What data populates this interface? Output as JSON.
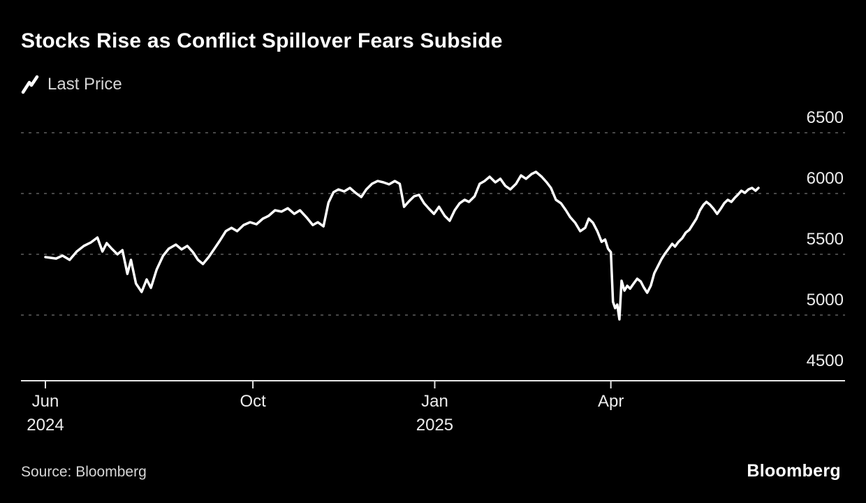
{
  "title": "Stocks Rise as Conflict Spillover Fears Subside",
  "legend": {
    "label": "Last Price"
  },
  "source": "Source: Bloomberg",
  "brand": "Bloomberg",
  "colors": {
    "background": "#000000",
    "line": "#ffffff",
    "grid": "#5f5f5f",
    "axis": "#e8e8e8",
    "text_primary": "#ffffff",
    "text_secondary": "#d6d6d6"
  },
  "chart_data": {
    "type": "line",
    "title": "Stocks Rise as Conflict Spillover Fears Subside",
    "legend_position": "top-left",
    "grid": "dashed-horizontal",
    "y_axis": {
      "ticks": [
        6500,
        6000,
        5500,
        5000,
        4500
      ],
      "gridline_values": [
        6500,
        6000,
        5500,
        5000
      ],
      "range": [
        4450,
        6550
      ],
      "side": "right"
    },
    "x_axis": {
      "ticks": [
        {
          "label": "Jun",
          "sub": "2024",
          "pos": 0.0
        },
        {
          "label": "Oct",
          "sub": "",
          "pos": 0.291
        },
        {
          "label": "Jan",
          "sub": "2025",
          "pos": 0.546
        },
        {
          "label": "Apr",
          "sub": "",
          "pos": 0.793
        }
      ],
      "range_note": "Jun 2024 through mid-2025"
    },
    "series": [
      {
        "name": "Last Price",
        "color": "#ffffff",
        "points": [
          [
            0.0,
            5477
          ],
          [
            0.015,
            5465
          ],
          [
            0.024,
            5489
          ],
          [
            0.034,
            5454
          ],
          [
            0.044,
            5523
          ],
          [
            0.054,
            5569
          ],
          [
            0.064,
            5598
          ],
          [
            0.073,
            5638
          ],
          [
            0.08,
            5523
          ],
          [
            0.086,
            5592
          ],
          [
            0.093,
            5546
          ],
          [
            0.101,
            5500
          ],
          [
            0.108,
            5534
          ],
          [
            0.115,
            5339
          ],
          [
            0.12,
            5454
          ],
          [
            0.127,
            5259
          ],
          [
            0.135,
            5190
          ],
          [
            0.142,
            5293
          ],
          [
            0.148,
            5224
          ],
          [
            0.156,
            5374
          ],
          [
            0.165,
            5488
          ],
          [
            0.173,
            5546
          ],
          [
            0.183,
            5580
          ],
          [
            0.191,
            5540
          ],
          [
            0.199,
            5569
          ],
          [
            0.207,
            5517
          ],
          [
            0.214,
            5454
          ],
          [
            0.221,
            5420
          ],
          [
            0.229,
            5477
          ],
          [
            0.237,
            5546
          ],
          [
            0.245,
            5615
          ],
          [
            0.253,
            5690
          ],
          [
            0.261,
            5718
          ],
          [
            0.269,
            5690
          ],
          [
            0.278,
            5741
          ],
          [
            0.287,
            5764
          ],
          [
            0.296,
            5747
          ],
          [
            0.305,
            5793
          ],
          [
            0.313,
            5816
          ],
          [
            0.322,
            5862
          ],
          [
            0.331,
            5851
          ],
          [
            0.34,
            5879
          ],
          [
            0.349,
            5833
          ],
          [
            0.357,
            5862
          ],
          [
            0.366,
            5805
          ],
          [
            0.375,
            5741
          ],
          [
            0.382,
            5764
          ],
          [
            0.39,
            5730
          ],
          [
            0.397,
            5925
          ],
          [
            0.404,
            6011
          ],
          [
            0.411,
            6034
          ],
          [
            0.419,
            6017
          ],
          [
            0.427,
            6046
          ],
          [
            0.435,
            6006
          ],
          [
            0.443,
            5971
          ],
          [
            0.45,
            6034
          ],
          [
            0.458,
            6080
          ],
          [
            0.466,
            6103
          ],
          [
            0.474,
            6092
          ],
          [
            0.482,
            6075
          ],
          [
            0.49,
            6103
          ],
          [
            0.497,
            6080
          ],
          [
            0.503,
            5891
          ],
          [
            0.51,
            5937
          ],
          [
            0.517,
            5977
          ],
          [
            0.524,
            5989
          ],
          [
            0.531,
            5920
          ],
          [
            0.538,
            5874
          ],
          [
            0.545,
            5833
          ],
          [
            0.552,
            5891
          ],
          [
            0.56,
            5816
          ],
          [
            0.567,
            5776
          ],
          [
            0.574,
            5862
          ],
          [
            0.581,
            5920
          ],
          [
            0.588,
            5948
          ],
          [
            0.594,
            5931
          ],
          [
            0.602,
            5977
          ],
          [
            0.609,
            6080
          ],
          [
            0.616,
            6103
          ],
          [
            0.623,
            6138
          ],
          [
            0.631,
            6092
          ],
          [
            0.638,
            6121
          ],
          [
            0.645,
            6063
          ],
          [
            0.652,
            6034
          ],
          [
            0.66,
            6080
          ],
          [
            0.667,
            6149
          ],
          [
            0.674,
            6121
          ],
          [
            0.682,
            6161
          ],
          [
            0.688,
            6178
          ],
          [
            0.696,
            6138
          ],
          [
            0.703,
            6092
          ],
          [
            0.709,
            6046
          ],
          [
            0.716,
            5948
          ],
          [
            0.723,
            5920
          ],
          [
            0.73,
            5862
          ],
          [
            0.736,
            5805
          ],
          [
            0.743,
            5759
          ],
          [
            0.75,
            5690
          ],
          [
            0.757,
            5718
          ],
          [
            0.762,
            5793
          ],
          [
            0.768,
            5759
          ],
          [
            0.774,
            5690
          ],
          [
            0.78,
            5603
          ],
          [
            0.785,
            5621
          ],
          [
            0.789,
            5546
          ],
          [
            0.793,
            5517
          ],
          [
            0.796,
            5109
          ],
          [
            0.799,
            5057
          ],
          [
            0.802,
            5086
          ],
          [
            0.805,
            4965
          ],
          [
            0.808,
            5282
          ],
          [
            0.812,
            5201
          ],
          [
            0.816,
            5241
          ],
          [
            0.82,
            5218
          ],
          [
            0.825,
            5259
          ],
          [
            0.83,
            5299
          ],
          [
            0.835,
            5276
          ],
          [
            0.839,
            5230
          ],
          [
            0.844,
            5184
          ],
          [
            0.849,
            5241
          ],
          [
            0.854,
            5345
          ],
          [
            0.859,
            5402
          ],
          [
            0.864,
            5460
          ],
          [
            0.869,
            5506
          ],
          [
            0.874,
            5546
          ],
          [
            0.879,
            5586
          ],
          [
            0.883,
            5563
          ],
          [
            0.888,
            5603
          ],
          [
            0.893,
            5632
          ],
          [
            0.898,
            5678
          ],
          [
            0.903,
            5701
          ],
          [
            0.908,
            5747
          ],
          [
            0.913,
            5793
          ],
          [
            0.918,
            5862
          ],
          [
            0.923,
            5908
          ],
          [
            0.927,
            5931
          ],
          [
            0.932,
            5908
          ],
          [
            0.937,
            5874
          ],
          [
            0.942,
            5833
          ],
          [
            0.947,
            5874
          ],
          [
            0.952,
            5920
          ],
          [
            0.957,
            5948
          ],
          [
            0.962,
            5931
          ],
          [
            0.967,
            5966
          ],
          [
            0.971,
            5989
          ],
          [
            0.976,
            6023
          ],
          [
            0.981,
            6006
          ],
          [
            0.986,
            6034
          ],
          [
            0.991,
            6046
          ],
          [
            0.996,
            6023
          ],
          [
            1.0,
            6046
          ]
        ]
      }
    ]
  }
}
